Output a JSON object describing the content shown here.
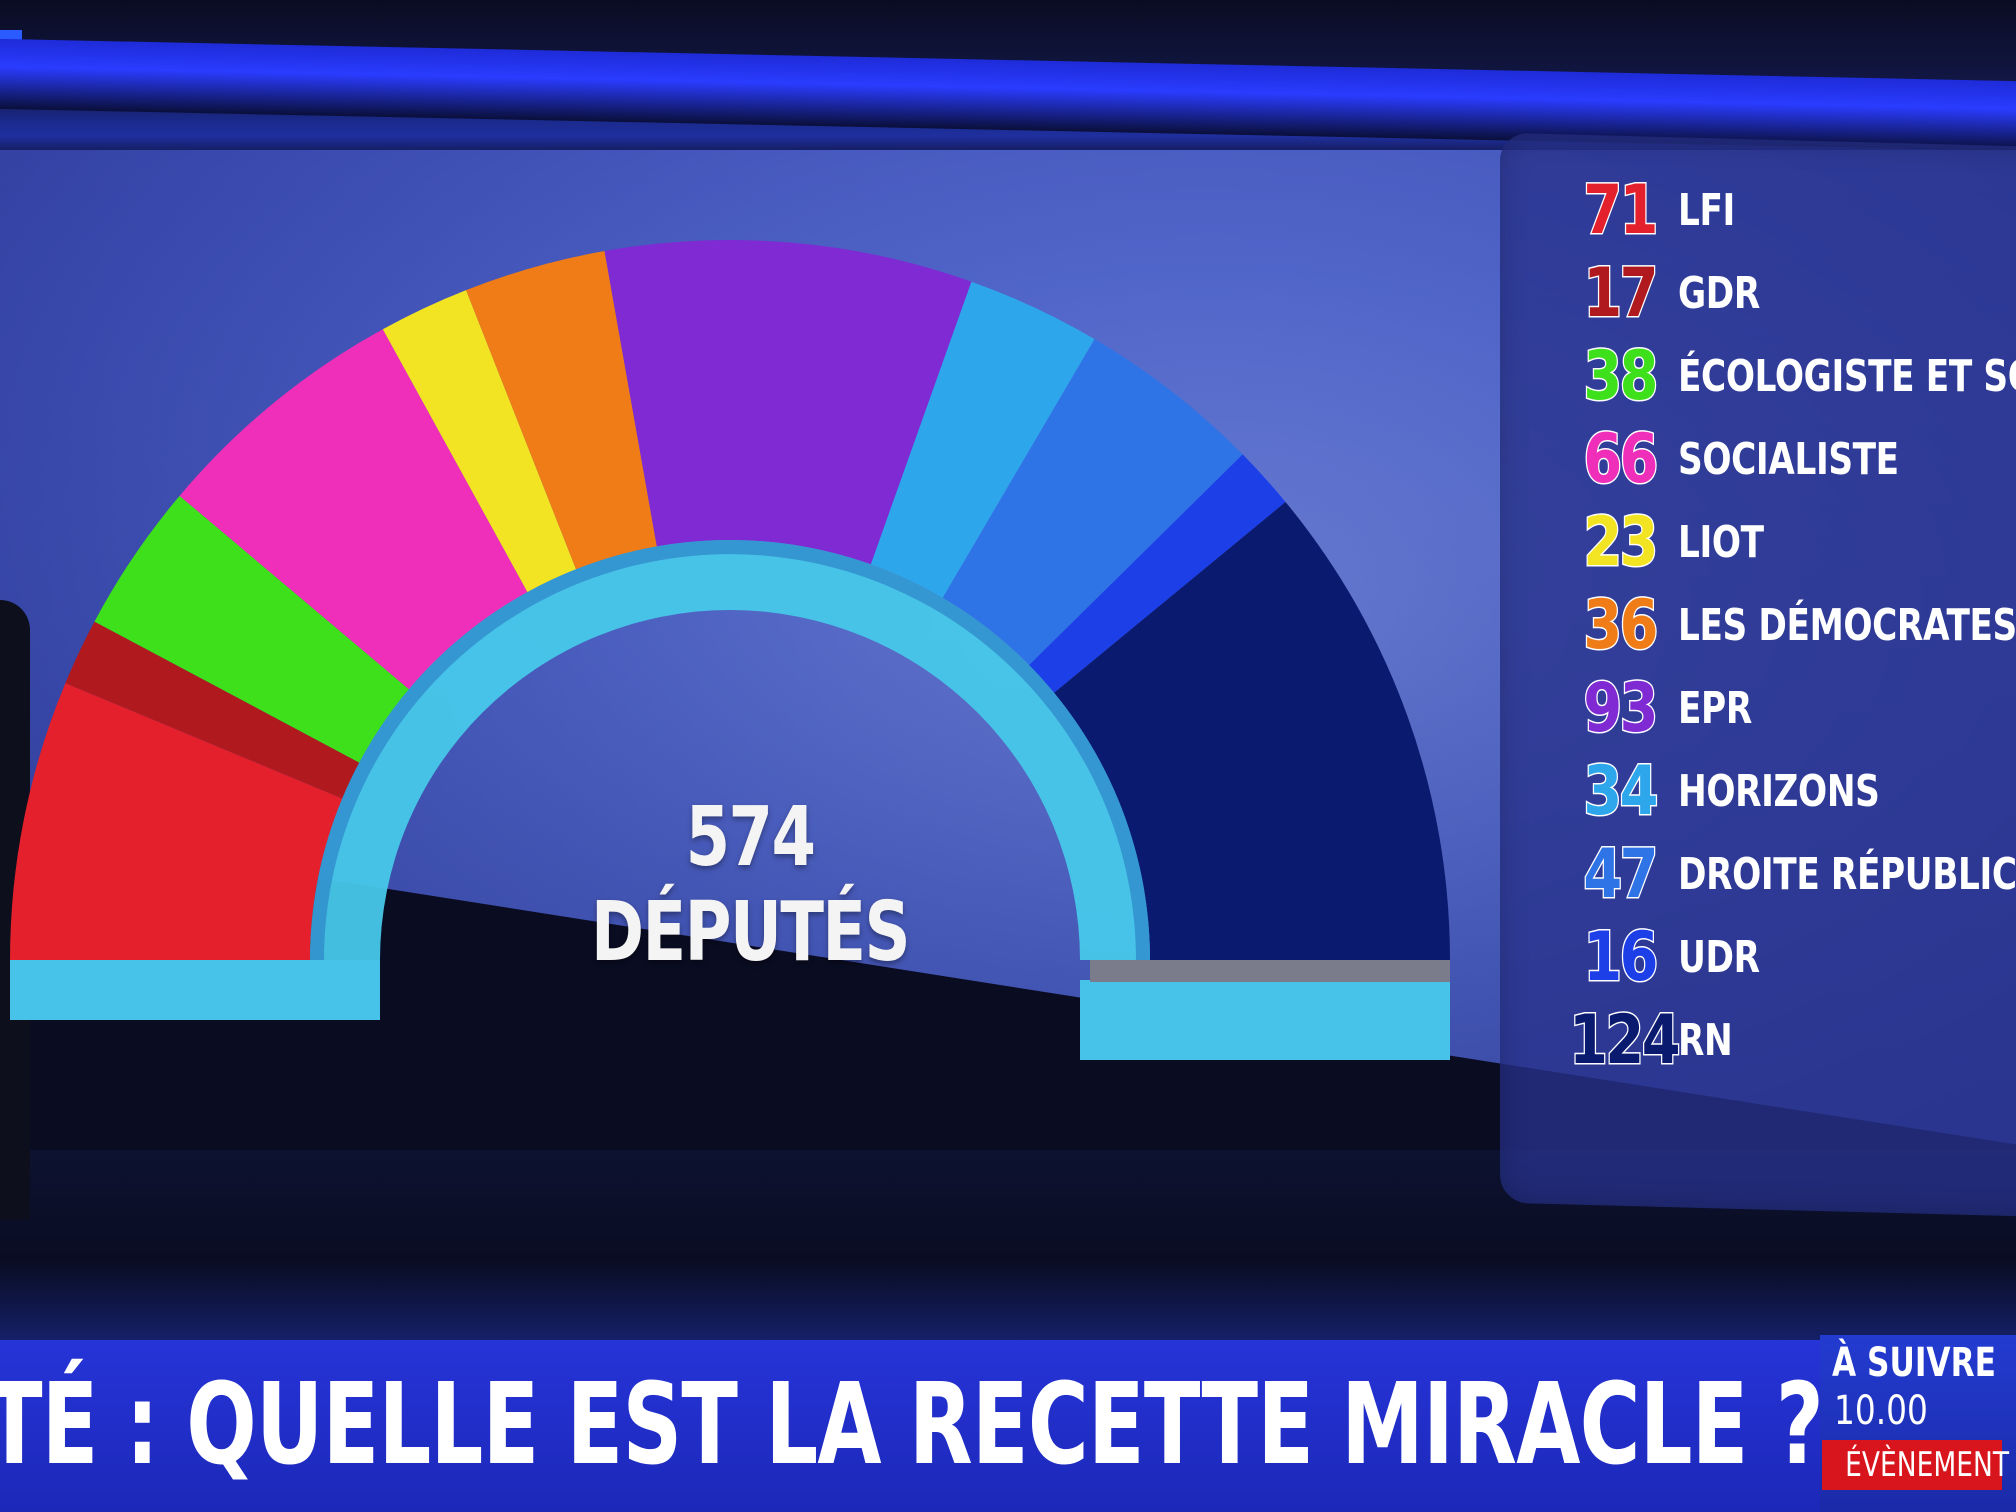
{
  "colors": {
    "screen_bg": "#5267cc",
    "ticker_bg": "#2634d8",
    "tag_red": "#d8141c"
  },
  "center_label": "574 DÉPUTÉS",
  "ticker": {
    "headline": "TÉ : QUELLE EST LA RECETTE MIRACLE ?",
    "next_title": "À SUIVRE",
    "next_time": "10.00",
    "next_tag": "ÉVÈNEMENT"
  },
  "chart_data": {
    "type": "pie",
    "subtype": "hemicycle",
    "title": "574 DÉPUTÉS",
    "total": 574,
    "legend_placement": "right",
    "series": [
      {
        "name": "LFI",
        "value": 71,
        "color": "#e3202b"
      },
      {
        "name": "GDR",
        "value": 17,
        "color": "#b01a1f"
      },
      {
        "name": "ÉCOLOGISTE ET SO",
        "value": 38,
        "color": "#3ee01c"
      },
      {
        "name": "SOCIALISTE",
        "value": 66,
        "color": "#ef2fb9"
      },
      {
        "name": "LIOT",
        "value": 23,
        "color": "#f2e323"
      },
      {
        "name": "LES DÉMOCRATES",
        "value": 36,
        "color": "#f07c17"
      },
      {
        "name": "EPR",
        "value": 93,
        "color": "#7f2ad3"
      },
      {
        "name": "HORIZONS",
        "value": 34,
        "color": "#2ea6ec"
      },
      {
        "name": "DROITE RÉPUBLIC",
        "value": 47,
        "color": "#2f74e6"
      },
      {
        "name": "UDR",
        "value": 16,
        "color": "#1c3fe8"
      },
      {
        "name": "RN",
        "value": 124,
        "color": "#0a1a6e"
      }
    ]
  }
}
